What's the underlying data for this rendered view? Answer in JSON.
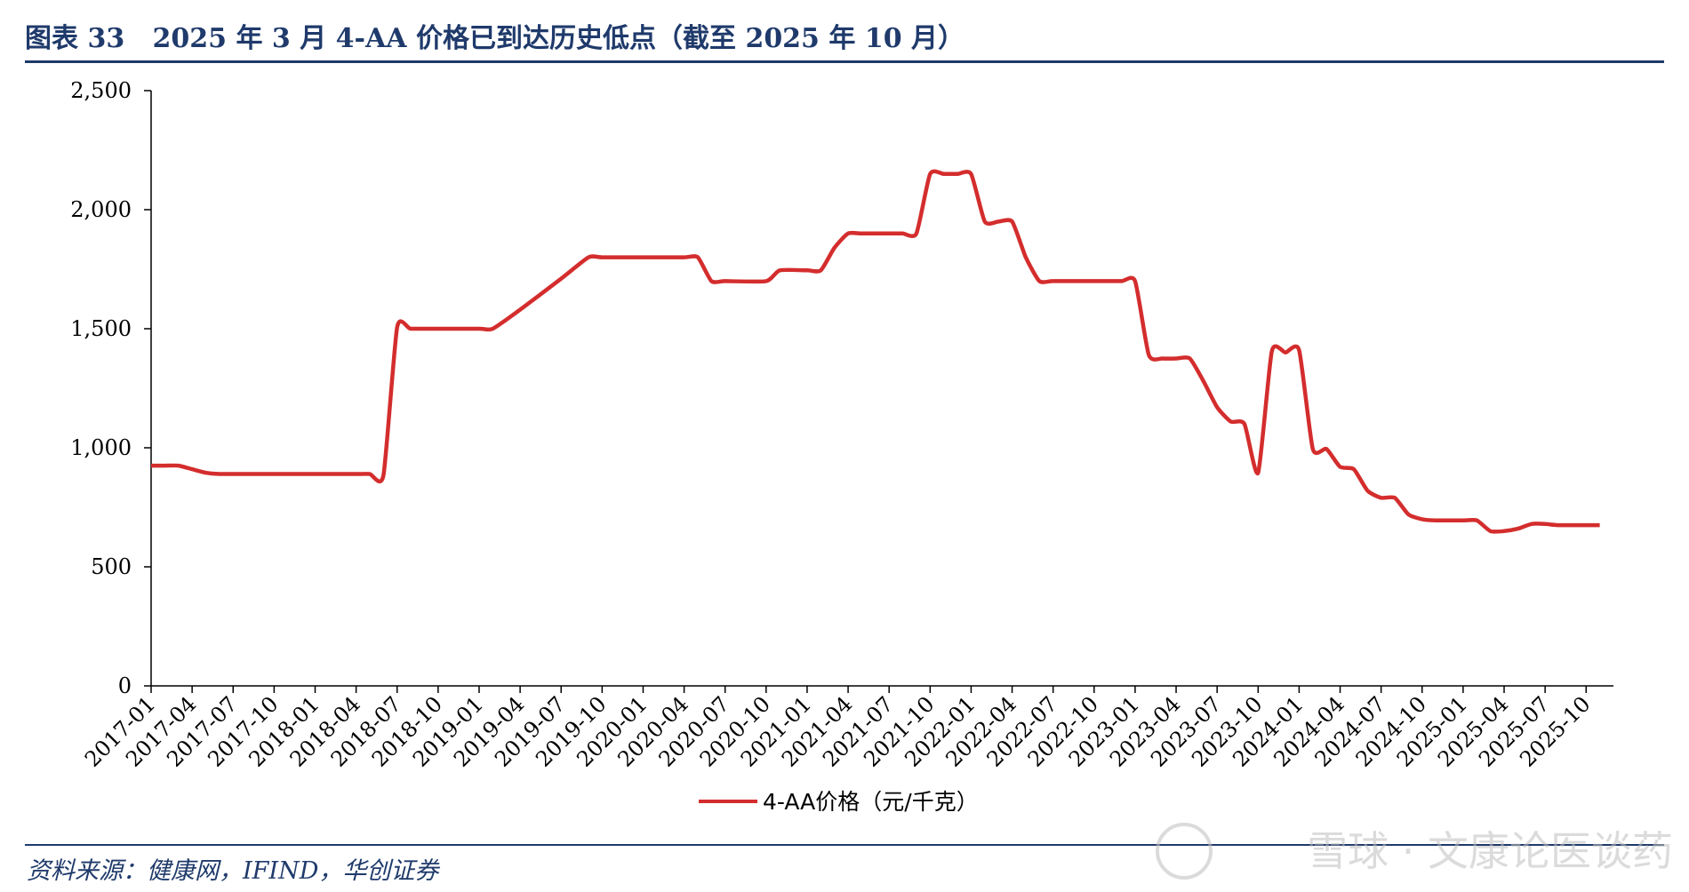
{
  "header": {
    "title": "图表 33   2025 年 3 月 4-AA 价格已到达历史低点（截至 2025 年 10 月）"
  },
  "footer": {
    "source": "资料来源：健康网，IFIND，华创证券",
    "watermark": "雪球 · 文康论医谈药"
  },
  "colors": {
    "line": "#d42d2d",
    "axis": "#000000",
    "title": "#1f3a6b"
  },
  "chart_data": {
    "type": "line",
    "title": "",
    "xlabel": "",
    "ylabel": "",
    "ylim": [
      0,
      2500
    ],
    "yticks": [
      0,
      500,
      1000,
      1500,
      2000,
      2500
    ],
    "ytick_labels": [
      "0",
      "500",
      "1,000",
      "1,500",
      "2,000",
      "2,500"
    ],
    "xlim": [
      "2017-01",
      "2025-12"
    ],
    "xtick_labels": [
      "2017-01",
      "2017-04",
      "2017-07",
      "2017-10",
      "2018-01",
      "2018-04",
      "2018-07",
      "2018-10",
      "2019-01",
      "2019-04",
      "2019-07",
      "2019-10",
      "2020-01",
      "2020-04",
      "2020-07",
      "2020-10",
      "2021-01",
      "2021-04",
      "2021-07",
      "2021-10",
      "2022-01",
      "2022-04",
      "2022-07",
      "2022-10",
      "2023-01",
      "2023-04",
      "2023-07",
      "2023-10",
      "2024-01",
      "2024-04",
      "2024-07",
      "2024-10",
      "2025-01",
      "2025-04",
      "2025-07",
      "2025-10"
    ],
    "grid": false,
    "legend": "bottom-center",
    "series": [
      {
        "name": "4-AA价格（元/千克）",
        "color": "#d42d2d",
        "points": [
          [
            "2017-01",
            925
          ],
          [
            "2017-02",
            925
          ],
          [
            "2017-03",
            925
          ],
          [
            "2017-04",
            910
          ],
          [
            "2017-05",
            895
          ],
          [
            "2017-06",
            890
          ],
          [
            "2017-10",
            890
          ],
          [
            "2018-01",
            890
          ],
          [
            "2018-04",
            890
          ],
          [
            "2018-05",
            890
          ],
          [
            "2018-06",
            885
          ],
          [
            "2018-07",
            1505
          ],
          [
            "2018-08",
            1500
          ],
          [
            "2018-10",
            1500
          ],
          [
            "2019-01",
            1500
          ],
          [
            "2019-02",
            1500
          ],
          [
            "2019-04",
            1580
          ],
          [
            "2019-07",
            1710
          ],
          [
            "2019-09",
            1800
          ],
          [
            "2019-10",
            1800
          ],
          [
            "2020-01",
            1800
          ],
          [
            "2020-04",
            1800
          ],
          [
            "2020-05",
            1800
          ],
          [
            "2020-06",
            1700
          ],
          [
            "2020-07",
            1700
          ],
          [
            "2020-10",
            1700
          ],
          [
            "2020-11",
            1745
          ],
          [
            "2021-01",
            1745
          ],
          [
            "2021-02",
            1745
          ],
          [
            "2021-03",
            1840
          ],
          [
            "2021-04",
            1900
          ],
          [
            "2021-05",
            1900
          ],
          [
            "2021-07",
            1900
          ],
          [
            "2021-08",
            1900
          ],
          [
            "2021-09",
            1900
          ],
          [
            "2021-10",
            2150
          ],
          [
            "2021-11",
            2150
          ],
          [
            "2021-12",
            2150
          ],
          [
            "2022-01",
            2150
          ],
          [
            "2022-02",
            1950
          ],
          [
            "2022-03",
            1950
          ],
          [
            "2022-04",
            1950
          ],
          [
            "2022-05",
            1800
          ],
          [
            "2022-06",
            1700
          ],
          [
            "2022-07",
            1700
          ],
          [
            "2022-10",
            1700
          ],
          [
            "2022-12",
            1700
          ],
          [
            "2023-01",
            1700
          ],
          [
            "2023-02",
            1390
          ],
          [
            "2023-03",
            1375
          ],
          [
            "2023-04",
            1375
          ],
          [
            "2023-05",
            1375
          ],
          [
            "2023-06",
            1280
          ],
          [
            "2023-07",
            1170
          ],
          [
            "2023-08",
            1110
          ],
          [
            "2023-09",
            1100
          ],
          [
            "2023-10",
            895
          ],
          [
            "2023-11",
            1405
          ],
          [
            "2023-12",
            1400
          ],
          [
            "2024-01",
            1410
          ],
          [
            "2024-02",
            995
          ],
          [
            "2024-03",
            995
          ],
          [
            "2024-04",
            920
          ],
          [
            "2024-05",
            910
          ],
          [
            "2024-06",
            820
          ],
          [
            "2024-07",
            790
          ],
          [
            "2024-08",
            790
          ],
          [
            "2024-09",
            720
          ],
          [
            "2024-10",
            700
          ],
          [
            "2024-11",
            695
          ],
          [
            "2025-01",
            695
          ],
          [
            "2025-02",
            695
          ],
          [
            "2025-03",
            650
          ],
          [
            "2025-04",
            650
          ],
          [
            "2025-05",
            660
          ],
          [
            "2025-06",
            680
          ],
          [
            "2025-07",
            680
          ],
          [
            "2025-08",
            675
          ],
          [
            "2025-10",
            675
          ],
          [
            "2025-11",
            675
          ]
        ]
      }
    ]
  }
}
